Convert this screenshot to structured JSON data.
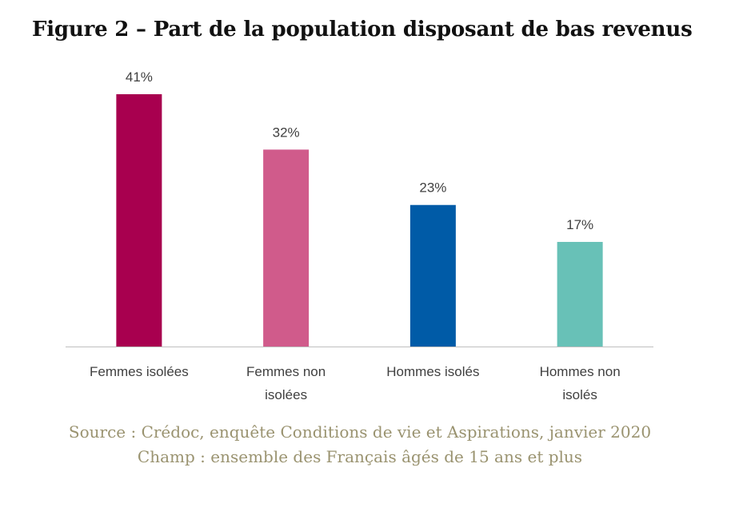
{
  "chart_data": {
    "type": "bar",
    "title": "Figure 2 – Part de la population disposant de bas revenus",
    "categories": [
      [
        "Femmes isolées"
      ],
      [
        "Femmes non",
        "isolées"
      ],
      [
        "Hommes isolés"
      ],
      [
        "Hommes non",
        "isolés"
      ]
    ],
    "values": [
      41,
      32,
      23,
      17
    ],
    "value_labels": [
      "41%",
      "32%",
      "23%",
      "17%"
    ],
    "colors": [
      "#a8004f",
      "#d05b8b",
      "#005ba7",
      "#68c1b7"
    ],
    "ylim": [
      0,
      45
    ],
    "grid": false,
    "legend": "none"
  },
  "footer": {
    "source": "Source : Crédoc, enquête Conditions de vie et Aspirations, janvier 2020",
    "scope": "Champ : ensemble des Français âgés de 15 ans et plus"
  }
}
